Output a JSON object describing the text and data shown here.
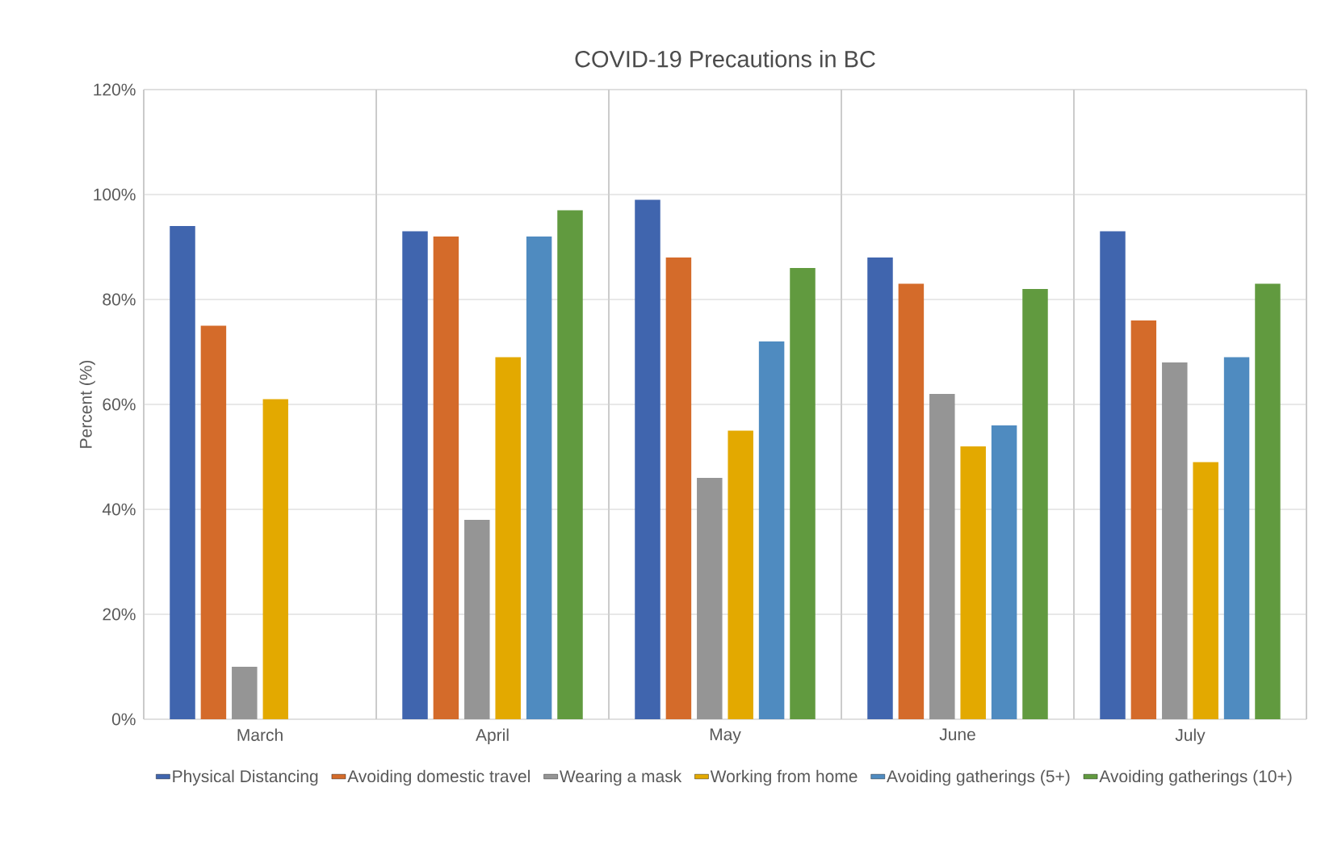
{
  "chart_data": {
    "type": "bar",
    "title": "COVID-19 Precautions in BC",
    "ylabel": "Percent (%)",
    "categories": [
      "March",
      "April",
      "May",
      "June",
      "July"
    ],
    "series": [
      {
        "name": "Physical Distancing",
        "color": "#4065ae",
        "values": [
          94,
          93,
          99,
          88,
          93
        ]
      },
      {
        "name": "Avoiding domestic travel",
        "color": "#d46b2a",
        "values": [
          75,
          92,
          88,
          83,
          76
        ]
      },
      {
        "name": "Wearing a mask",
        "color": "#959595",
        "values": [
          10,
          38,
          46,
          62,
          68
        ]
      },
      {
        "name": "Working from home",
        "color": "#e3a900",
        "values": [
          61,
          69,
          55,
          52,
          49
        ]
      },
      {
        "name": "Avoiding gatherings (5+)",
        "color": "#4f8bc0",
        "values": [
          null,
          92,
          72,
          56,
          69
        ]
      },
      {
        "name": "Avoiding gatherings (10+)",
        "color": "#619a3f",
        "values": [
          null,
          97,
          86,
          82,
          83
        ]
      }
    ],
    "ylim": [
      0,
      120
    ],
    "yticks": [
      {
        "value": 0,
        "label": "0%"
      },
      {
        "value": 20,
        "label": "20%"
      },
      {
        "value": 40,
        "label": "40%"
      },
      {
        "value": 60,
        "label": "60%"
      },
      {
        "value": 80,
        "label": "80%"
      },
      {
        "value": 100,
        "label": "100%"
      },
      {
        "value": 120,
        "label": "120%"
      }
    ],
    "grid": true,
    "legend": "bottom"
  }
}
